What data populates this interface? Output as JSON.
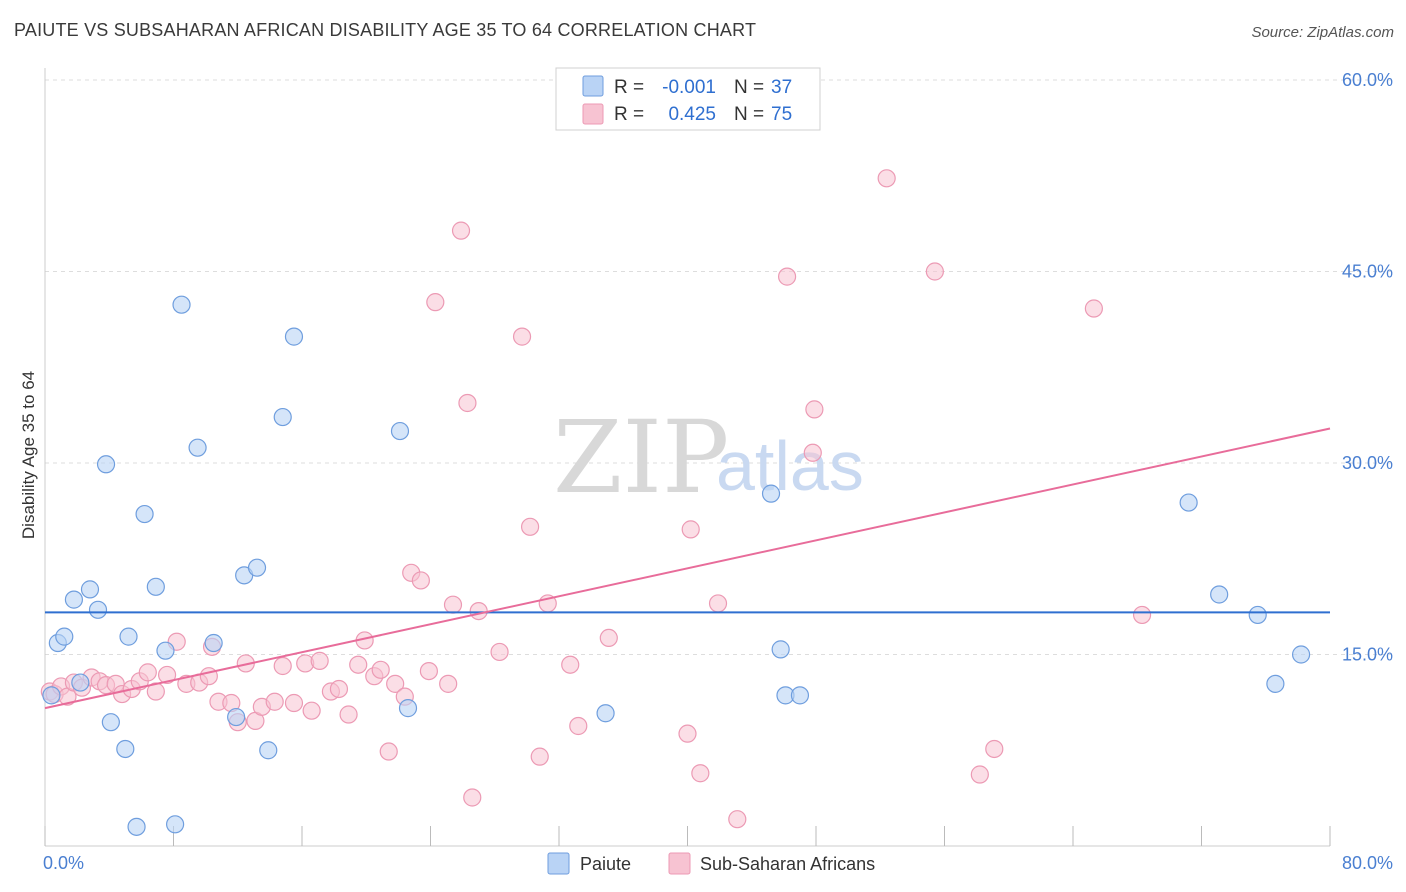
{
  "header": {
    "title": "PAIUTE VS SUBSAHARAN AFRICAN DISABILITY AGE 35 TO 64 CORRELATION CHART",
    "source": "Source: ZipAtlas.com"
  },
  "watermark": {
    "zip": "ZIP",
    "atlas": "atlas"
  },
  "colors": {
    "paiute_fill": "#b9d3f5",
    "paiute_stroke": "#6f9ede",
    "paiute_line": "#2f6fd0",
    "ssa_fill": "#f7c3d2",
    "ssa_stroke": "#ec9ab4",
    "ssa_line": "#e86c9a",
    "grid": "#dddddd",
    "tick_text": "#4a7fd1"
  },
  "legend": {
    "rows": [
      {
        "r_label": "R =",
        "r_value": "-0.001",
        "n_label": "N =",
        "n_value": "37"
      },
      {
        "r_label": "R =",
        "r_value": "0.425",
        "n_label": "N =",
        "n_value": "75"
      }
    ]
  },
  "bottom_legend": {
    "paiute": "Paiute",
    "ssa": "Sub-Saharan Africans"
  },
  "chart_data": {
    "type": "scatter",
    "title": "PAIUTE VS SUBSAHARAN AFRICAN DISABILITY AGE 35 TO 64 CORRELATION CHART",
    "xlabel": "",
    "ylabel": "Disability Age 35 to 64",
    "xlim": [
      0,
      80
    ],
    "ylim": [
      0,
      60
    ],
    "x_tick_labels": [
      "0.0%",
      "80.0%"
    ],
    "y_ticks": [
      15,
      30,
      45,
      60
    ],
    "y_tick_labels": [
      "15.0%",
      "30.0%",
      "45.0%",
      "60.0%"
    ],
    "grid": true,
    "series": [
      {
        "name": "Paiute",
        "r": -0.001,
        "n": 37,
        "trend": {
          "x": [
            0,
            80
          ],
          "y": [
            18.3,
            18.3
          ]
        },
        "points": [
          [
            0.4,
            11.8
          ],
          [
            0.8,
            15.9
          ],
          [
            1.2,
            16.4
          ],
          [
            1.8,
            19.3
          ],
          [
            2.2,
            12.8
          ],
          [
            2.8,
            20.1
          ],
          [
            3.3,
            18.5
          ],
          [
            3.8,
            29.9
          ],
          [
            4.1,
            9.7
          ],
          [
            5.0,
            7.6
          ],
          [
            5.2,
            16.4
          ],
          [
            5.7,
            1.5
          ],
          [
            6.2,
            26.0
          ],
          [
            6.9,
            20.3
          ],
          [
            7.5,
            15.3
          ],
          [
            8.1,
            1.7
          ],
          [
            8.5,
            42.4
          ],
          [
            9.5,
            31.2
          ],
          [
            10.5,
            15.9
          ],
          [
            11.9,
            10.1
          ],
          [
            12.4,
            21.2
          ],
          [
            13.2,
            21.8
          ],
          [
            13.9,
            7.5
          ],
          [
            14.8,
            33.6
          ],
          [
            15.5,
            39.9
          ],
          [
            22.1,
            32.5
          ],
          [
            22.6,
            10.8
          ],
          [
            34.9,
            10.4
          ],
          [
            45.2,
            27.6
          ],
          [
            45.8,
            15.4
          ],
          [
            46.1,
            11.8
          ],
          [
            47.0,
            11.8
          ],
          [
            71.2,
            26.9
          ],
          [
            73.1,
            19.7
          ],
          [
            75.5,
            18.1
          ],
          [
            76.6,
            12.7
          ],
          [
            78.2,
            15.0
          ]
        ]
      },
      {
        "name": "Sub-Saharan Africans",
        "r": 0.425,
        "n": 75,
        "trend": {
          "x": [
            0,
            80
          ],
          "y": [
            10.8,
            32.7
          ]
        },
        "points": [
          [
            0.3,
            12.1
          ],
          [
            0.6,
            11.9
          ],
          [
            1.0,
            12.5
          ],
          [
            1.4,
            11.7
          ],
          [
            1.8,
            12.8
          ],
          [
            2.3,
            12.4
          ],
          [
            2.9,
            13.2
          ],
          [
            3.4,
            12.9
          ],
          [
            3.8,
            12.6
          ],
          [
            4.4,
            12.7
          ],
          [
            4.8,
            11.9
          ],
          [
            5.4,
            12.3
          ],
          [
            5.9,
            12.9
          ],
          [
            6.4,
            13.6
          ],
          [
            6.9,
            12.1
          ],
          [
            7.6,
            13.4
          ],
          [
            8.2,
            16.0
          ],
          [
            8.8,
            12.7
          ],
          [
            9.6,
            12.8
          ],
          [
            10.2,
            13.3
          ],
          [
            10.4,
            15.6
          ],
          [
            10.8,
            11.3
          ],
          [
            11.6,
            11.2
          ],
          [
            12.0,
            9.7
          ],
          [
            12.5,
            14.3
          ],
          [
            13.1,
            9.8
          ],
          [
            13.5,
            10.9
          ],
          [
            14.3,
            11.3
          ],
          [
            14.8,
            14.1
          ],
          [
            15.5,
            11.2
          ],
          [
            16.2,
            14.3
          ],
          [
            16.6,
            10.6
          ],
          [
            17.1,
            14.5
          ],
          [
            17.8,
            12.1
          ],
          [
            18.3,
            12.3
          ],
          [
            18.9,
            10.3
          ],
          [
            19.5,
            14.2
          ],
          [
            19.9,
            16.1
          ],
          [
            20.5,
            13.3
          ],
          [
            20.9,
            13.8
          ],
          [
            21.4,
            7.4
          ],
          [
            21.8,
            12.7
          ],
          [
            22.4,
            11.7
          ],
          [
            22.8,
            21.4
          ],
          [
            23.4,
            20.8
          ],
          [
            23.9,
            13.7
          ],
          [
            24.3,
            42.6
          ],
          [
            25.1,
            12.7
          ],
          [
            25.4,
            18.9
          ],
          [
            25.9,
            48.2
          ],
          [
            26.3,
            34.7
          ],
          [
            26.6,
            3.8
          ],
          [
            27.0,
            18.4
          ],
          [
            28.3,
            15.2
          ],
          [
            29.7,
            39.9
          ],
          [
            30.2,
            25.0
          ],
          [
            30.8,
            7.0
          ],
          [
            31.3,
            19.0
          ],
          [
            32.7,
            14.2
          ],
          [
            33.2,
            9.4
          ],
          [
            35.1,
            16.3
          ],
          [
            40.2,
            24.8
          ],
          [
            40.0,
            8.8
          ],
          [
            40.8,
            5.7
          ],
          [
            41.9,
            19.0
          ],
          [
            43.1,
            2.1
          ],
          [
            46.2,
            44.6
          ],
          [
            47.8,
            30.8
          ],
          [
            47.9,
            34.2
          ],
          [
            52.4,
            52.3
          ],
          [
            55.4,
            45.0
          ],
          [
            58.2,
            5.6
          ],
          [
            59.1,
            7.6
          ],
          [
            65.3,
            42.1
          ],
          [
            68.3,
            18.1
          ]
        ]
      }
    ]
  }
}
